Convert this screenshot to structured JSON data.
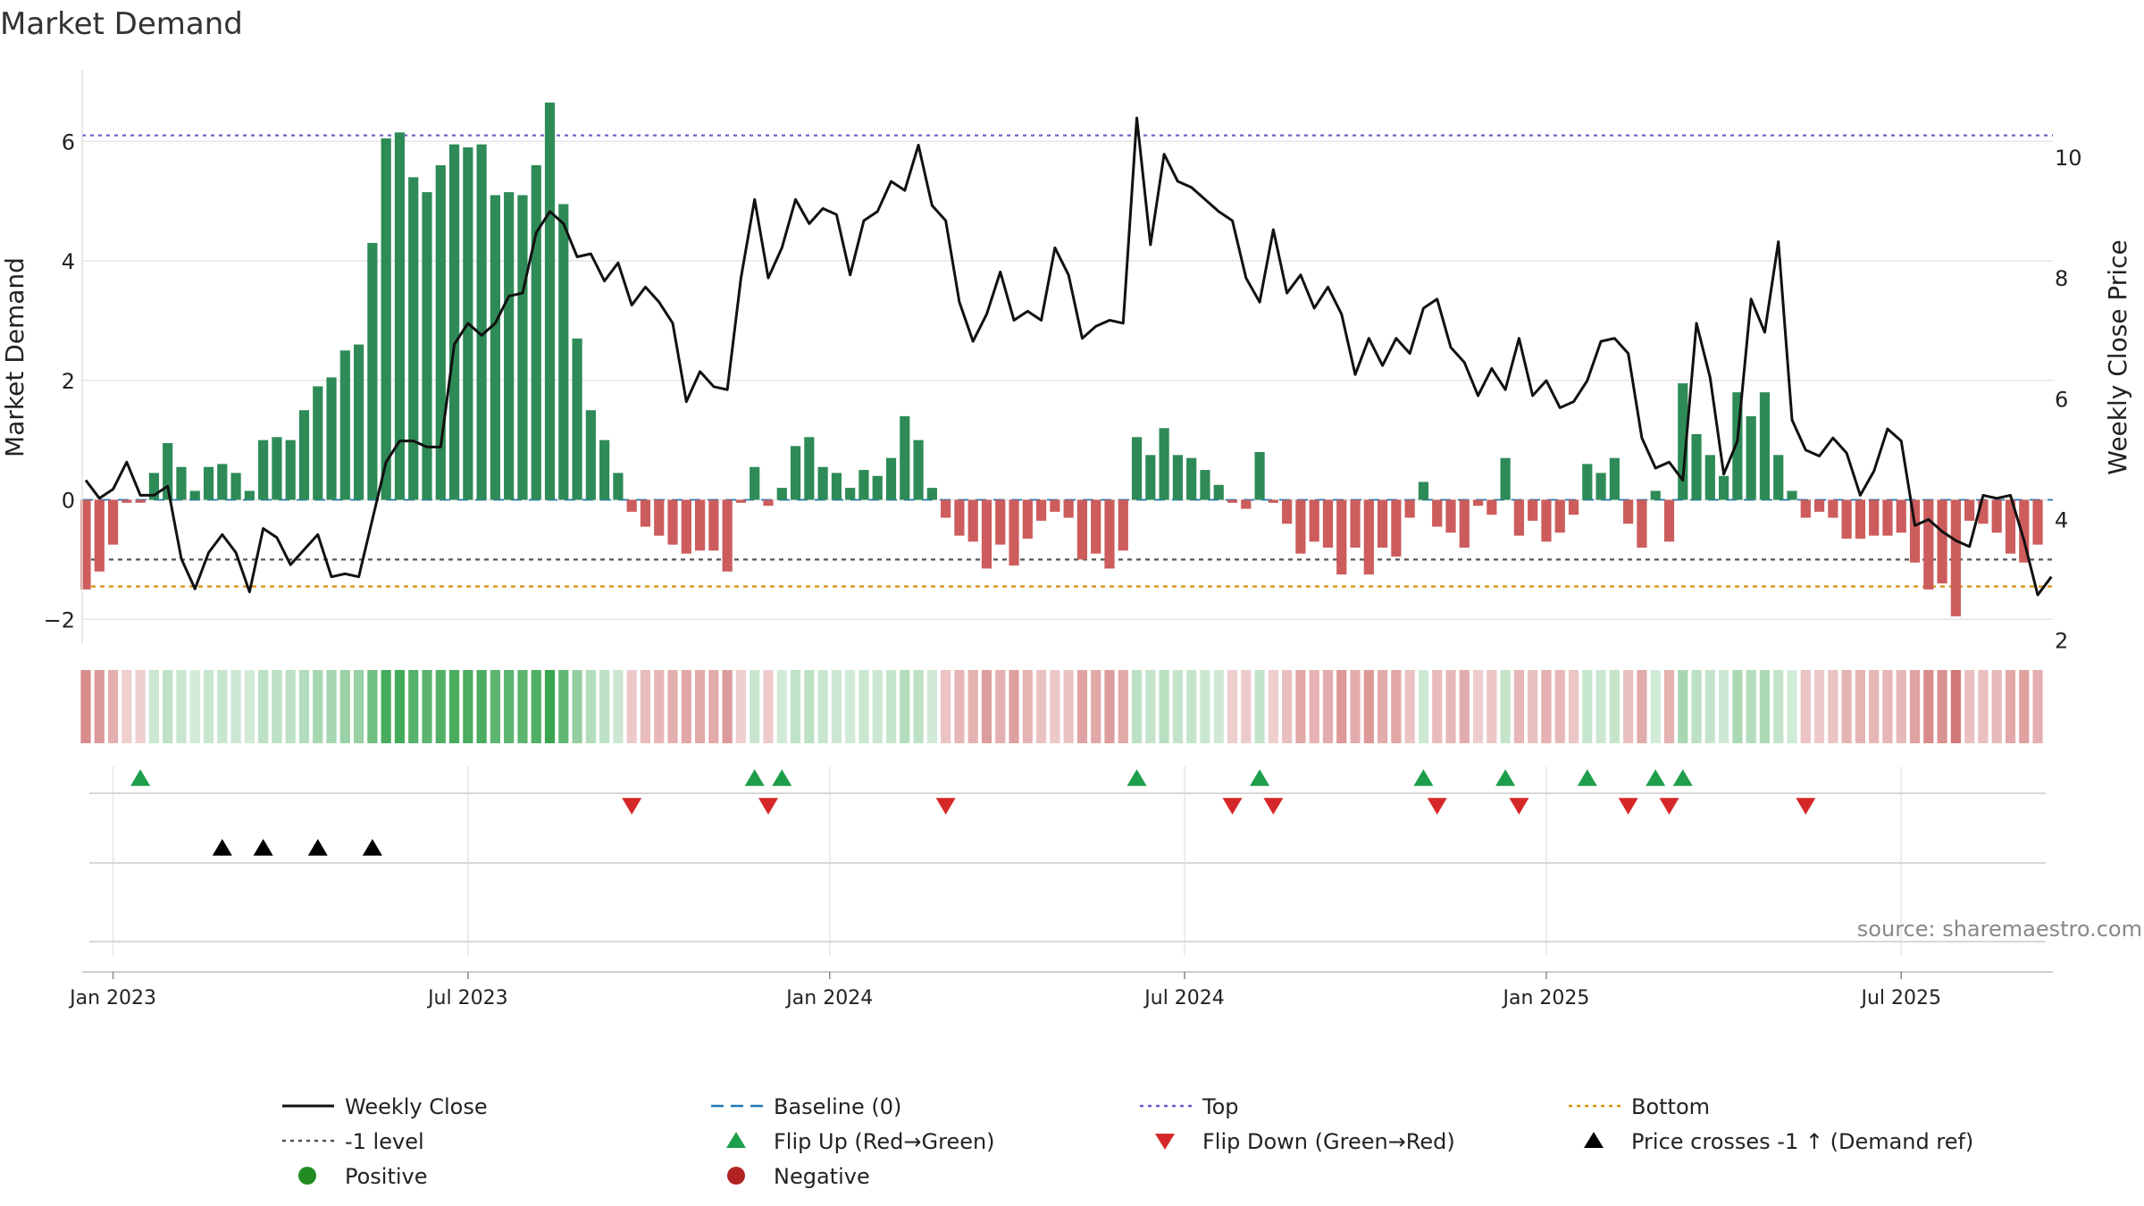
{
  "chart_data": {
    "type": "bar",
    "title": "Market Demand",
    "ylabel_left": "Market Demand",
    "ylabel_right": "Weekly Close Price",
    "y_left_range": [
      -2.4,
      7.2
    ],
    "y_left_ticks": [
      {
        "value": -2,
        "label": "−2"
      },
      {
        "value": 0,
        "label": "0"
      },
      {
        "value": 2,
        "label": "2"
      },
      {
        "value": 4,
        "label": "4"
      },
      {
        "value": 6,
        "label": "6"
      }
    ],
    "y_right_range": [
      1.95,
      11.45
    ],
    "y_right_ticks": [
      {
        "value": 2,
        "label": "2"
      },
      {
        "value": 4,
        "label": "4"
      },
      {
        "value": 6,
        "label": "6"
      },
      {
        "value": 8,
        "label": "8"
      },
      {
        "value": 10,
        "label": "10"
      }
    ],
    "x_ticks": [
      {
        "week": 2,
        "label": "Jan 2023"
      },
      {
        "week": 28,
        "label": "Jul 2023"
      },
      {
        "week": 54.5,
        "label": "Jan 2024"
      },
      {
        "week": 80.5,
        "label": "Jul 2024"
      },
      {
        "week": 107,
        "label": "Jan 2025"
      },
      {
        "week": 133,
        "label": "Jul 2025"
      }
    ],
    "reference_lines": {
      "top": 6.1,
      "bottom": -1.45,
      "minus_one_level": -1.0,
      "baseline": 0
    },
    "demand": [
      -1.5,
      -1.2,
      -0.75,
      -0.05,
      -0.05,
      0.45,
      0.95,
      0.55,
      0.15,
      0.55,
      0.6,
      0.45,
      0.15,
      1.0,
      1.05,
      1.0,
      1.5,
      1.9,
      2.05,
      2.5,
      2.6,
      4.3,
      6.05,
      6.15,
      5.4,
      5.15,
      5.6,
      5.95,
      5.9,
      5.95,
      5.1,
      5.15,
      5.1,
      5.6,
      6.65,
      4.95,
      2.7,
      1.5,
      1.0,
      0.45,
      -0.2,
      -0.45,
      -0.6,
      -0.75,
      -0.9,
      -0.85,
      -0.85,
      -1.2,
      -0.05,
      0.55,
      -0.1,
      0.2,
      0.9,
      1.05,
      0.55,
      0.45,
      0.2,
      0.5,
      0.4,
      0.7,
      1.4,
      1.0,
      0.2,
      -0.3,
      -0.6,
      -0.7,
      -1.15,
      -0.75,
      -1.1,
      -0.65,
      -0.35,
      -0.2,
      -0.3,
      -1.0,
      -0.9,
      -1.15,
      -0.85,
      1.05,
      0.75,
      1.2,
      0.75,
      0.7,
      0.5,
      0.25,
      -0.05,
      -0.15,
      0.8,
      -0.05,
      -0.4,
      -0.9,
      -0.7,
      -0.8,
      -1.25,
      -0.8,
      -1.25,
      -0.8,
      -0.95,
      -0.3,
      0.3,
      -0.45,
      -0.55,
      -0.8,
      -0.1,
      -0.25,
      0.7,
      -0.6,
      -0.35,
      -0.7,
      -0.55,
      -0.25,
      0.6,
      0.45,
      0.7,
      -0.4,
      -0.8,
      0.15,
      -0.7,
      1.95,
      1.1,
      0.75,
      0.4,
      1.8,
      1.4,
      1.8,
      0.75,
      0.15,
      -0.3,
      -0.2,
      -0.3,
      -0.65,
      -0.65,
      -0.6,
      -0.6,
      -0.55,
      -1.05,
      -1.5,
      -1.4,
      -1.95,
      -0.35,
      -0.4,
      -0.55,
      -0.9,
      -1.05,
      -0.75
    ],
    "weekly_close": [
      4.65,
      4.35,
      4.5,
      4.95,
      4.4,
      4.4,
      4.55,
      3.35,
      2.85,
      3.45,
      3.75,
      3.45,
      2.8,
      3.85,
      3.7,
      3.25,
      3.5,
      3.75,
      3.05,
      3.1,
      3.05,
      4.0,
      4.95,
      5.3,
      5.3,
      5.2,
      5.2,
      6.9,
      7.25,
      7.05,
      7.25,
      7.7,
      7.75,
      8.75,
      9.1,
      8.9,
      8.35,
      8.4,
      7.95,
      8.25,
      7.55,
      7.85,
      7.6,
      7.25,
      5.95,
      6.45,
      6.2,
      6.15,
      8.0,
      9.3,
      8.0,
      8.5,
      9.3,
      8.9,
      9.15,
      9.05,
      8.05,
      8.95,
      9.1,
      9.6,
      9.45,
      10.2,
      9.2,
      8.95,
      7.6,
      6.95,
      7.4,
      8.1,
      7.3,
      7.45,
      7.3,
      8.5,
      8.05,
      7.0,
      7.2,
      7.3,
      7.25,
      10.65,
      8.55,
      10.05,
      9.6,
      9.5,
      9.3,
      9.1,
      8.95,
      8.0,
      7.6,
      8.8,
      7.75,
      8.05,
      7.5,
      7.85,
      7.4,
      6.4,
      7.0,
      6.55,
      7.0,
      6.75,
      7.5,
      7.65,
      6.85,
      6.6,
      6.05,
      6.5,
      6.15,
      7.0,
      6.05,
      6.3,
      5.85,
      5.95,
      6.3,
      6.95,
      7.0,
      6.75,
      5.35,
      4.85,
      4.95,
      4.65,
      7.25,
      6.35,
      4.75,
      5.3,
      7.65,
      7.1,
      8.6,
      5.65,
      5.15,
      5.05,
      5.35,
      5.1,
      4.4,
      4.8,
      5.5,
      5.3,
      3.9,
      4.0,
      3.8,
      3.65,
      3.55,
      4.4,
      4.35,
      4.4,
      3.65,
      2.75,
      3.05
    ],
    "flip_up_weeks": [
      4,
      49,
      51,
      77,
      86,
      98,
      104,
      110,
      115,
      117
    ],
    "flip_down_weeks": [
      40,
      50,
      63,
      84,
      87,
      99,
      105,
      113,
      116,
      126
    ],
    "price_cross_weeks": [
      10,
      13,
      17,
      21
    ],
    "source": "source: sharemaestro.com",
    "legend": [
      {
        "label": "Weekly Close",
        "symbol": "solid-line",
        "color": "#111111"
      },
      {
        "label": "Baseline (0)",
        "symbol": "dashed-line",
        "color": "#1f77b4"
      },
      {
        "label": "Top",
        "symbol": "dotted-line",
        "color": "#6a5acd"
      },
      {
        "label": "Bottom",
        "symbol": "dotted-line",
        "color": "#d4900a"
      },
      {
        "label": "-1 level",
        "symbol": "dotted-line",
        "color": "#555555"
      },
      {
        "label": "Flip Up (Red→Green)",
        "symbol": "triangle-up",
        "color": "#1e9e4a"
      },
      {
        "label": "Flip Down (Green→Red)",
        "symbol": "triangle-down",
        "color": "#d62728"
      },
      {
        "label": "Price crosses -1 ↑ (Demand ref)",
        "symbol": "triangle-up",
        "color": "#000000"
      },
      {
        "label": "Positive",
        "symbol": "circle",
        "color": "#228b22"
      },
      {
        "label": "Negative",
        "symbol": "circle",
        "color": "#b22222"
      }
    ],
    "colors": {
      "positive_bar": "#2e8b57",
      "negative_bar": "#cd5c5c",
      "price_line": "#111111",
      "grid": "#e6e6e6"
    }
  }
}
